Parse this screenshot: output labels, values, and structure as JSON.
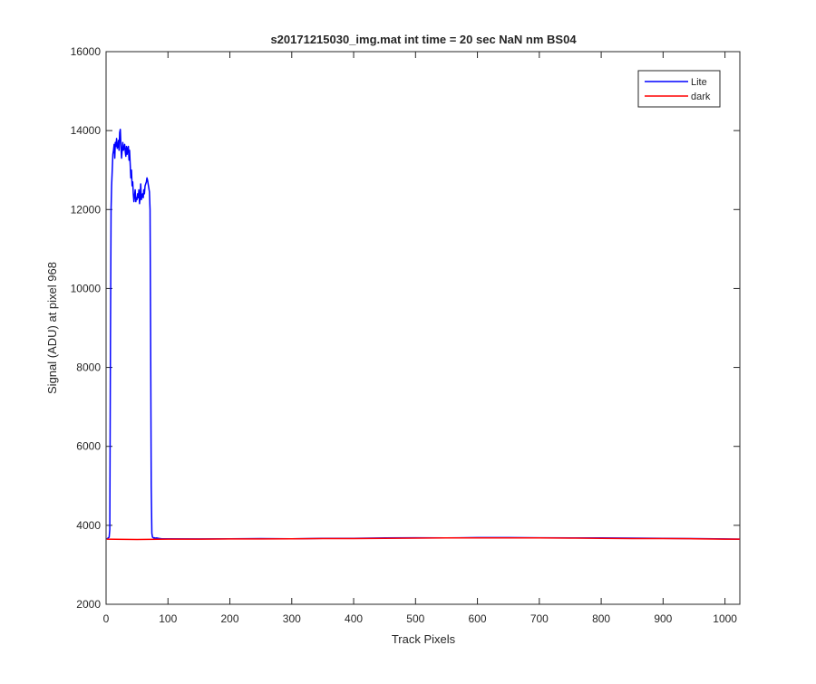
{
  "chart_data": {
    "type": "line",
    "title": "s20171215030_img.mat int time = 20 sec  NaN nm BS04",
    "xlabel": "Track Pixels",
    "ylabel": "Signal (ADU) at pixel 968",
    "xlim": [
      0,
      1024
    ],
    "ylim": [
      2000,
      16000
    ],
    "xticks": [
      0,
      100,
      200,
      300,
      400,
      500,
      600,
      700,
      800,
      900,
      1000
    ],
    "yticks": [
      2000,
      4000,
      6000,
      8000,
      10000,
      12000,
      14000,
      16000
    ],
    "grid": false,
    "legend": {
      "placement": "top-right",
      "entries": [
        "Lite",
        "dark"
      ]
    },
    "series": [
      {
        "name": "Lite",
        "color": "#0000ff",
        "x": [
          1,
          5,
          6,
          7,
          8,
          9,
          10,
          11,
          12,
          13,
          14,
          15,
          16,
          17,
          18,
          19,
          20,
          21,
          22,
          23,
          24,
          25,
          26,
          27,
          28,
          29,
          30,
          31,
          32,
          33,
          34,
          35,
          36,
          37,
          38,
          39,
          40,
          41,
          42,
          43,
          44,
          45,
          46,
          47,
          48,
          49,
          50,
          51,
          52,
          53,
          54,
          55,
          56,
          57,
          58,
          59,
          60,
          61,
          62,
          63,
          64,
          65,
          66,
          67,
          68,
          69,
          70,
          71,
          72,
          73,
          74,
          75,
          76,
          77,
          78,
          79,
          80,
          82,
          85,
          90,
          100,
          150,
          200,
          250,
          300,
          350,
          400,
          450,
          500,
          550,
          600,
          650,
          700,
          750,
          800,
          850,
          900,
          950,
          1000,
          1024
        ],
        "y": [
          3650,
          3700,
          3900,
          8500,
          12000,
          12600,
          13000,
          13400,
          13500,
          13650,
          13300,
          13700,
          13600,
          13800,
          13550,
          13600,
          13750,
          13500,
          13950,
          14030,
          13600,
          13300,
          13500,
          13700,
          13500,
          13550,
          13650,
          13450,
          13350,
          13600,
          13400,
          13550,
          13600,
          13250,
          13500,
          13150,
          12800,
          13000,
          12600,
          12700,
          12400,
          12200,
          12350,
          12500,
          12200,
          12300,
          12250,
          12400,
          12300,
          12500,
          12150,
          12300,
          12650,
          12250,
          12350,
          12400,
          12300,
          12500,
          12400,
          12600,
          12650,
          12700,
          12800,
          12750,
          12650,
          12550,
          12450,
          12000,
          9000,
          5000,
          3800,
          3700,
          3690,
          3680,
          3685,
          3680,
          3675,
          3680,
          3670,
          3660,
          3660,
          3655,
          3660,
          3665,
          3660,
          3670,
          3670,
          3680,
          3685,
          3680,
          3690,
          3690,
          3685,
          3680,
          3680,
          3675,
          3670,
          3665,
          3655,
          3650
        ]
      },
      {
        "name": "dark",
        "color": "#ff0000",
        "x": [
          1,
          50,
          100,
          150,
          200,
          250,
          300,
          350,
          400,
          450,
          500,
          550,
          600,
          650,
          700,
          750,
          800,
          850,
          900,
          950,
          1000,
          1024
        ],
        "y": [
          3650,
          3640,
          3650,
          3650,
          3655,
          3655,
          3660,
          3665,
          3665,
          3670,
          3675,
          3680,
          3680,
          3680,
          3680,
          3675,
          3670,
          3665,
          3665,
          3660,
          3650,
          3650
        ]
      }
    ]
  }
}
